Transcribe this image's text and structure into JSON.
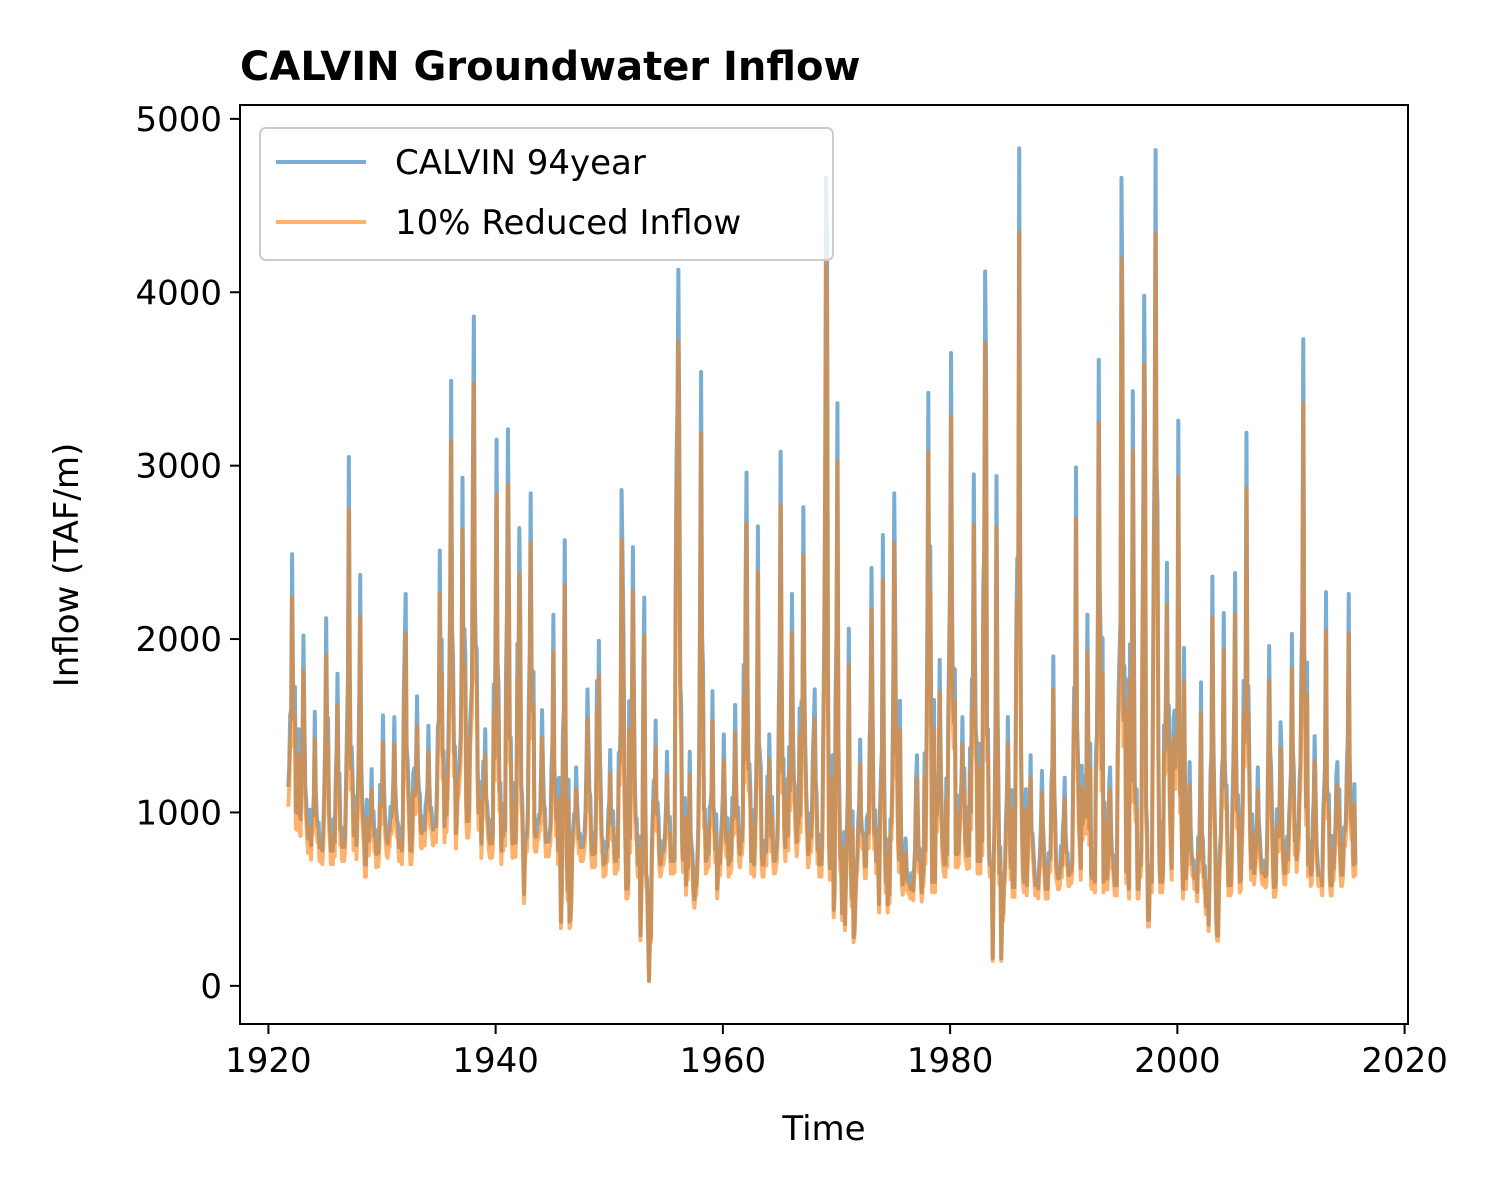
{
  "chart_data": {
    "type": "line",
    "title": "CALVIN Groundwater Inflow",
    "xlabel": "Time",
    "ylabel": "Inflow (TAF/m)",
    "xlim": [
      1917.5,
      2020.3
    ],
    "ylim": [
      -220,
      5080
    ],
    "x_ticks": [
      1920,
      1940,
      1960,
      1980,
      2000,
      2020
    ],
    "y_ticks": [
      0,
      1000,
      2000,
      3000,
      4000,
      5000
    ],
    "x_tick_labels": [
      "1920",
      "1940",
      "1960",
      "1980",
      "2000",
      "2020"
    ],
    "y_tick_labels": [
      "0",
      "1000",
      "2000",
      "3000",
      "4000",
      "5000"
    ],
    "legend_position": "upper-left",
    "grid": false,
    "series": [
      {
        "name": "CALVIN 94year",
        "color": "#1f77b4",
        "alpha": 0.6,
        "scale": 1.0
      },
      {
        "name": "10% Reduced Inflow",
        "color": "#ff7f0e",
        "alpha": 0.6,
        "scale": 0.9
      }
    ],
    "time_range": [
      "1921-10",
      "2015-09"
    ],
    "annual_peaks": [
      [
        1922,
        2490
      ],
      [
        1923,
        2020
      ],
      [
        1924,
        1580
      ],
      [
        1925,
        2120
      ],
      [
        1926,
        1800
      ],
      [
        1927,
        3050
      ],
      [
        1928,
        2370
      ],
      [
        1929,
        1250
      ],
      [
        1930,
        1560
      ],
      [
        1931,
        1550
      ],
      [
        1932,
        2260
      ],
      [
        1933,
        1670
      ],
      [
        1934,
        1500
      ],
      [
        1935,
        2510
      ],
      [
        1936,
        3490
      ],
      [
        1937,
        2930
      ],
      [
        1938,
        3860
      ],
      [
        1939,
        1480
      ],
      [
        1940,
        3150
      ],
      [
        1941,
        3210
      ],
      [
        1942,
        2640
      ],
      [
        1943,
        2840
      ],
      [
        1944,
        1590
      ],
      [
        1945,
        2140
      ],
      [
        1946,
        2570
      ],
      [
        1947,
        1260
      ],
      [
        1948,
        1710
      ],
      [
        1949,
        1990
      ],
      [
        1950,
        1360
      ],
      [
        1951,
        2860
      ],
      [
        1952,
        2530
      ],
      [
        1953,
        2240
      ],
      [
        1954,
        1530
      ],
      [
        1955,
        1350
      ],
      [
        1956,
        4130
      ],
      [
        1957,
        1350
      ],
      [
        1958,
        3540
      ],
      [
        1959,
        1700
      ],
      [
        1960,
        1450
      ],
      [
        1961,
        1620
      ],
      [
        1962,
        2960
      ],
      [
        1963,
        2650
      ],
      [
        1964,
        1450
      ],
      [
        1965,
        3080
      ],
      [
        1966,
        2260
      ],
      [
        1967,
        2760
      ],
      [
        1968,
        1710
      ],
      [
        1969,
        4660
      ],
      [
        1970,
        3360
      ],
      [
        1971,
        2060
      ],
      [
        1972,
        1420
      ],
      [
        1973,
        2410
      ],
      [
        1974,
        2600
      ],
      [
        1975,
        2840
      ],
      [
        1976,
        850
      ],
      [
        1977,
        1330
      ],
      [
        1978,
        3420
      ],
      [
        1979,
        1880
      ],
      [
        1980,
        3650
      ],
      [
        1981,
        1550
      ],
      [
        1982,
        2950
      ],
      [
        1983,
        4120
      ],
      [
        1984,
        2940
      ],
      [
        1985,
        1550
      ],
      [
        1986,
        4830
      ],
      [
        1987,
        1330
      ],
      [
        1988,
        1240
      ],
      [
        1989,
        1900
      ],
      [
        1990,
        1200
      ],
      [
        1991,
        2990
      ],
      [
        1992,
        2140
      ],
      [
        1993,
        3610
      ],
      [
        1994,
        1260
      ],
      [
        1995,
        4660
      ],
      [
        1996,
        3430
      ],
      [
        1997,
        3980
      ],
      [
        1998,
        4820
      ],
      [
        1999,
        2440
      ],
      [
        2000,
        3260
      ],
      [
        2001,
        1290
      ],
      [
        2002,
        1750
      ],
      [
        2003,
        2360
      ],
      [
        2004,
        2150
      ],
      [
        2005,
        2380
      ],
      [
        2006,
        3190
      ],
      [
        2007,
        1260
      ],
      [
        2008,
        1960
      ],
      [
        2009,
        1520
      ],
      [
        2010,
        2030
      ],
      [
        2011,
        3730
      ],
      [
        2012,
        1440
      ],
      [
        2013,
        2270
      ],
      [
        2014,
        1290
      ],
      [
        2015,
        2260
      ]
    ],
    "annual_troughs": [
      [
        1922,
        1000
      ],
      [
        1923,
        850
      ],
      [
        1924,
        800
      ],
      [
        1925,
        780
      ],
      [
        1926,
        800
      ],
      [
        1927,
        870
      ],
      [
        1928,
        700
      ],
      [
        1929,
        760
      ],
      [
        1930,
        820
      ],
      [
        1931,
        800
      ],
      [
        1932,
        780
      ],
      [
        1933,
        880
      ],
      [
        1934,
        900
      ],
      [
        1935,
        920
      ],
      [
        1936,
        880
      ],
      [
        1937,
        950
      ],
      [
        1938,
        1000
      ],
      [
        1939,
        820
      ],
      [
        1940,
        780
      ],
      [
        1941,
        820
      ],
      [
        1942,
        530
      ],
      [
        1943,
        860
      ],
      [
        1944,
        830
      ],
      [
        1945,
        780
      ],
      [
        1946,
        370
      ],
      [
        1947,
        800
      ],
      [
        1948,
        760
      ],
      [
        1949,
        700
      ],
      [
        1950,
        720
      ],
      [
        1951,
        560
      ],
      [
        1952,
        700
      ],
      [
        1953,
        30
      ],
      [
        1954,
        700
      ],
      [
        1955,
        720
      ],
      [
        1956,
        730
      ],
      [
        1957,
        500
      ],
      [
        1958,
        720
      ],
      [
        1959,
        560
      ],
      [
        1960,
        700
      ],
      [
        1961,
        760
      ],
      [
        1962,
        720
      ],
      [
        1963,
        700
      ],
      [
        1964,
        720
      ],
      [
        1965,
        800
      ],
      [
        1966,
        830
      ],
      [
        1967,
        760
      ],
      [
        1968,
        700
      ],
      [
        1969,
        680
      ],
      [
        1970,
        420
      ],
      [
        1971,
        280
      ],
      [
        1972,
        690
      ],
      [
        1973,
        720
      ],
      [
        1974,
        470
      ],
      [
        1975,
        730
      ],
      [
        1976,
        560
      ],
      [
        1977,
        540
      ],
      [
        1978,
        600
      ],
      [
        1979,
        700
      ],
      [
        1980,
        760
      ],
      [
        1981,
        750
      ],
      [
        1982,
        720
      ],
      [
        1983,
        700
      ],
      [
        1984,
        160
      ],
      [
        1985,
        570
      ],
      [
        1986,
        600
      ],
      [
        1987,
        580
      ],
      [
        1988,
        560
      ],
      [
        1989,
        620
      ],
      [
        1990,
        640
      ],
      [
        1991,
        680
      ],
      [
        1992,
        620
      ],
      [
        1993,
        600
      ],
      [
        1994,
        580
      ],
      [
        1995,
        660
      ],
      [
        1996,
        560
      ],
      [
        1997,
        380
      ],
      [
        1998,
        600
      ],
      [
        1999,
        680
      ],
      [
        2000,
        560
      ],
      [
        2001,
        620
      ],
      [
        2002,
        460
      ],
      [
        2003,
        290
      ],
      [
        2004,
        580
      ],
      [
        2005,
        600
      ],
      [
        2006,
        680
      ],
      [
        2007,
        650
      ],
      [
        2008,
        570
      ],
      [
        2009,
        650
      ],
      [
        2010,
        730
      ],
      [
        2011,
        700
      ],
      [
        2012,
        640
      ],
      [
        2013,
        580
      ],
      [
        2014,
        640
      ],
      [
        2015,
        700
      ]
    ]
  }
}
